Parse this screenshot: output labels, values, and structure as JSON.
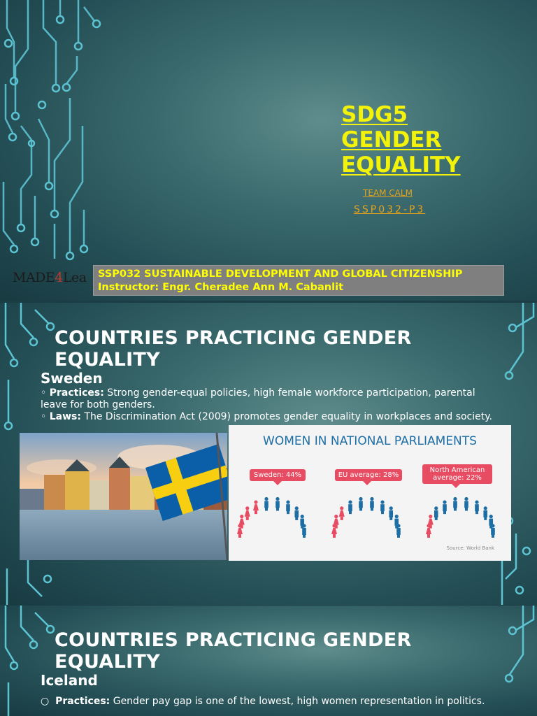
{
  "slide1": {
    "title_lines": [
      "SDG5",
      "GENDER",
      "EQUALITY"
    ],
    "team": "TEAM CALM",
    "code": "SSP032-P3",
    "logo": "MADE4Lea",
    "course": "SSP032 SUSTAINABLE DEVELOPMENT AND GLOBAL CITIZENSHIP",
    "instructor": "Instructor: Engr. Cheradee Ann M. Cabanlit"
  },
  "slide2": {
    "heading_lines": [
      "COUNTRIES PRACTICING GENDER",
      "EQUALITY"
    ],
    "country": "Sweden",
    "bullets": [
      {
        "marker": "◦",
        "label": "Practices:",
        "text": " Strong gender-equal policies, high female workforce participation, parental leave for both genders."
      },
      {
        "marker": "◦",
        "label": "Laws:",
        "text": " The Discrimination Act (2009) promotes gender equality in workplaces and society."
      }
    ],
    "infographic": {
      "title": "WOMEN IN NATIONAL PARLIAMENTS",
      "groups": [
        {
          "label": "Sweden: 44%",
          "women_share": 0.44
        },
        {
          "label": "EU average: 28%",
          "women_share": 0.28
        },
        {
          "label": "North American average: 22%",
          "label_lines": [
            "North American",
            "average: 22%"
          ],
          "women_share": 0.22
        }
      ],
      "source": "Source: World Bank",
      "colors": {
        "women": "#e84c63",
        "men": "#1d6ea5"
      }
    }
  },
  "slide3": {
    "heading_lines": [
      "COUNTRIES PRACTICING GENDER",
      "EQUALITY"
    ],
    "country": "Iceland",
    "bullets": [
      {
        "marker": "○",
        "label": "Practices:",
        "text": " Gender pay gap is one of the lowest, high women representation in politics."
      }
    ]
  },
  "colors": {
    "title_yellow": "#f2f20a",
    "accent_orange": "#e6a21a",
    "circuit": "#57c7d8"
  }
}
